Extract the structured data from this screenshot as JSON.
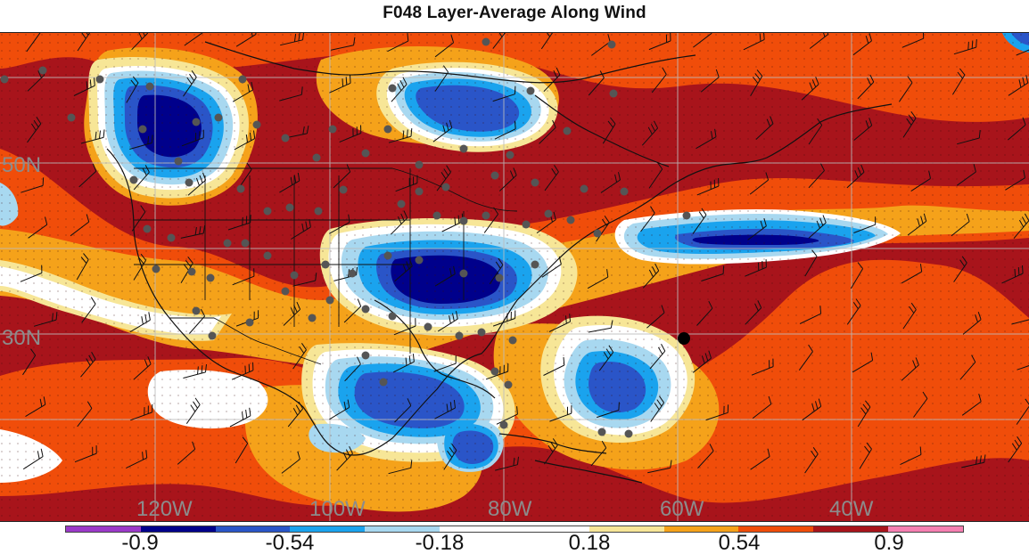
{
  "map": {
    "title": "F048 Layer-Average Along Wind",
    "longitude_labels": [
      "120W",
      "100W",
      "80W",
      "60W",
      "40W"
    ],
    "latitude_labels": [
      "50N",
      "30N"
    ],
    "label_color": "#8c8c8c",
    "grid_color": "#bdbdbd"
  },
  "colorbar": {
    "colors": [
      "#9b39c9",
      "#00008b",
      "#2a55c8",
      "#1aa3ee",
      "#a8d8f0",
      "#ffffff",
      "#ffffff",
      "#f7e697",
      "#f5a21a",
      "#f04d0a",
      "#a8141b",
      "#f57fb1"
    ],
    "labels": [
      "-0.9",
      "-0.54",
      "-0.18",
      "0.18",
      "0.54",
      "0.9"
    ]
  },
  "palette": {
    "ocean_background": "#a8141b",
    "orange_band": "#f04d0a",
    "gold_band": "#f5a21a",
    "pale_yellow_band": "#f7e697",
    "neutral": "#ffffff",
    "light_blue": "#a8d8f0",
    "sky_blue": "#1aa3ee",
    "blue": "#2a55c8",
    "navy": "#00008b",
    "station_marker": "#555555"
  }
}
